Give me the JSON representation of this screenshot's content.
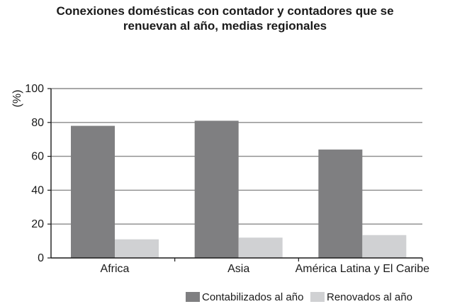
{
  "chart_data": {
    "type": "bar",
    "title_lines": [
      "Conexiones domésticas con contador y contadores que se",
      "renuevan al año, medias regionales"
    ],
    "ylabel": "(%)",
    "xlabel": "",
    "ylim": [
      0,
      100
    ],
    "yticks": [
      0,
      20,
      40,
      60,
      80,
      100
    ],
    "grid": true,
    "categories": [
      "Africa",
      "Asia",
      "América Latina y El Caribe"
    ],
    "series": [
      {
        "name": "Contabilizados al año",
        "color": "#7f7f81",
        "values": [
          78,
          81,
          64
        ]
      },
      {
        "name": "Renovados al año",
        "color": "#d0d1d3",
        "values": [
          11,
          12,
          13.5
        ]
      }
    ],
    "legend_position": "bottom-right"
  }
}
